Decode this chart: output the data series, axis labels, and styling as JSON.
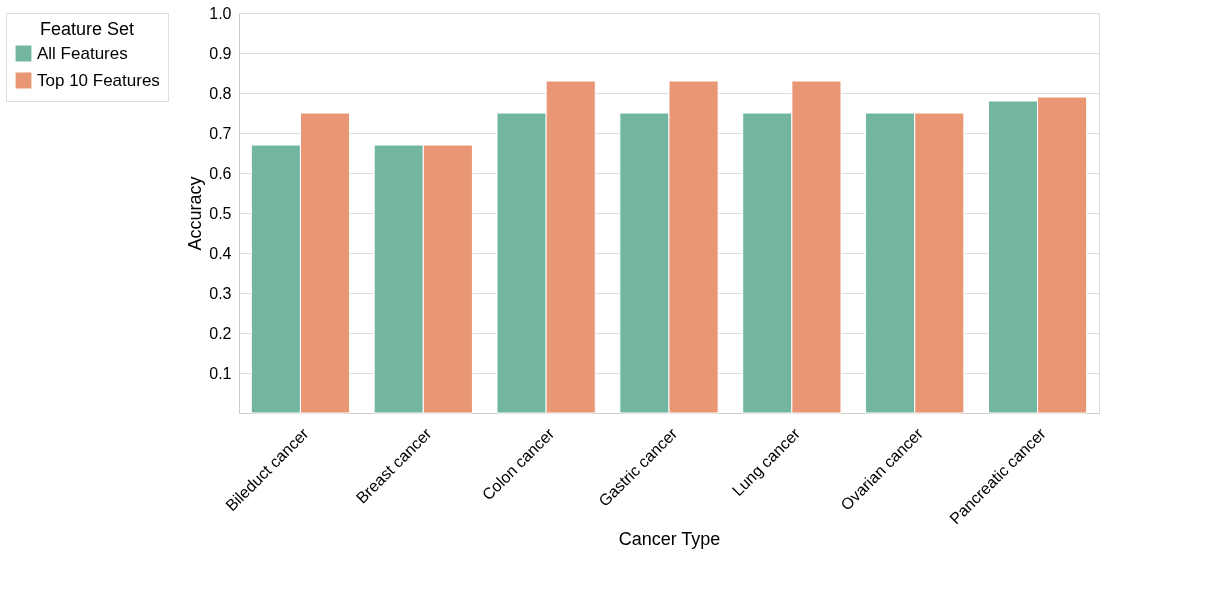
{
  "chart_data": {
    "type": "bar",
    "xlabel": "Cancer Type",
    "ylabel": "Accuracy",
    "legend_title": "Feature Set",
    "categories": [
      "Bileduct cancer",
      "Breast cancer",
      "Colon cancer",
      "Gastric cancer",
      "Lung cancer",
      "Ovarian cancer",
      "Pancreatic cancer"
    ],
    "series": [
      {
        "name": "All Features",
        "color": "#72b6a1",
        "values": [
          0.67,
          0.67,
          0.75,
          0.75,
          0.75,
          0.75,
          0.78
        ]
      },
      {
        "name": "Top 10 Features",
        "color": "#e99675",
        "values": [
          0.75,
          0.67,
          0.83,
          0.83,
          0.83,
          0.75,
          0.79
        ]
      }
    ],
    "ylim": [
      0,
      1.0
    ],
    "yticks": [
      0.1,
      0.2,
      0.3,
      0.4,
      0.5,
      0.6,
      0.7,
      0.8,
      0.9,
      {
        "value": 1,
        "label": "1.0"
      }
    ],
    "grid": "y",
    "legend": "top left"
  }
}
